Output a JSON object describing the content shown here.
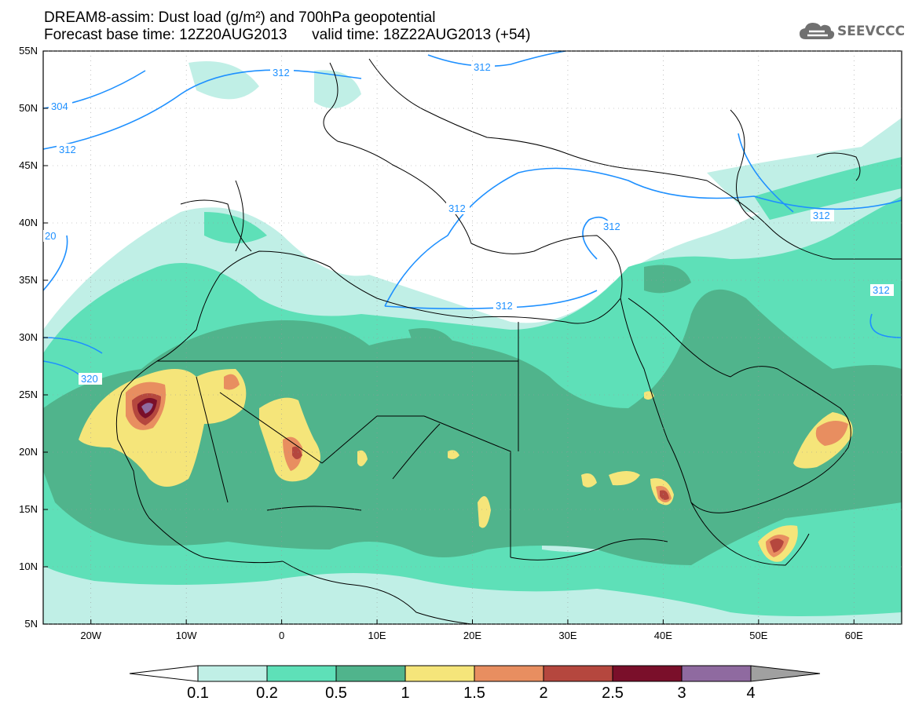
{
  "title": {
    "line1": "DREAM8-assim: Dust load (g/m²) and 700hPa geopotential",
    "line2_base": "Forecast base time: 12Z20AUG2013",
    "line2_valid": "valid time: 18Z22AUG2013 (+54)"
  },
  "logo": {
    "text": "SEEVCCC",
    "icon": "cloud-icon"
  },
  "axes": {
    "lat_labels": [
      "55N",
      "50N",
      "45N",
      "40N",
      "35N",
      "30N",
      "25N",
      "20N",
      "15N",
      "10N",
      "5N"
    ],
    "lon_labels": [
      "20W",
      "10W",
      "0",
      "10E",
      "20E",
      "30E",
      "40E",
      "50E",
      "60E"
    ],
    "lat_range": [
      5,
      55
    ],
    "lon_range": [
      -25,
      65
    ]
  },
  "contours": {
    "color": "#1e90ff",
    "labels": [
      "312",
      "304",
      "312",
      "312",
      "312",
      "312",
      "312",
      "312",
      "320",
      "20"
    ]
  },
  "colorbar": {
    "ticks": [
      "0.1",
      "0.2",
      "0.5",
      "1",
      "1.5",
      "2",
      "2.5",
      "3",
      "4"
    ],
    "colors": [
      "#c0efe6",
      "#5ee0b8",
      "#50b48c",
      "#f5e57a",
      "#e88e60",
      "#b5473e",
      "#7a0f2a",
      "#8f6aa0",
      "#a0a0a0"
    ]
  }
}
